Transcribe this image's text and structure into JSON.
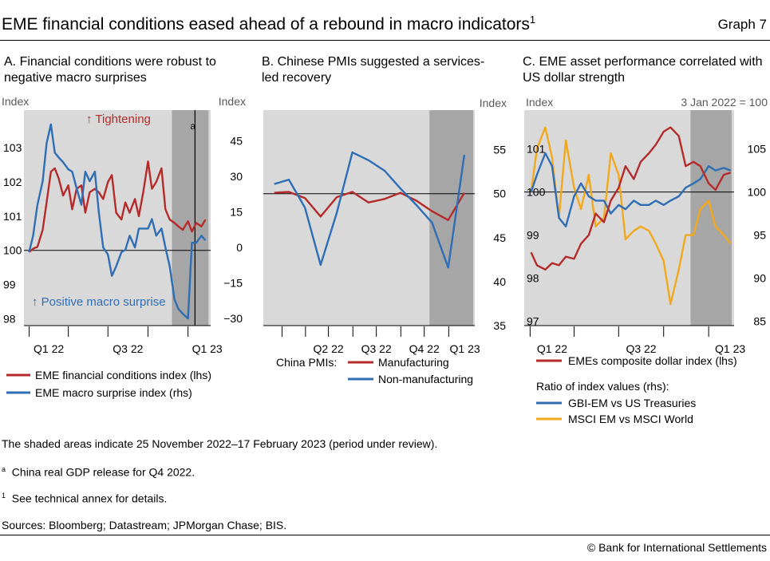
{
  "figure": {
    "title": "EME financial conditions eased ahead of a rebound in macro indicators",
    "title_sup": "1",
    "graph_number": "Graph 7"
  },
  "notes": {
    "shading": "The shaded areas indicate 25 November 2022–17 February 2023 (period under review).",
    "a_mark": "a",
    "a_text": "China real GDP release for Q4 2022.",
    "one_mark": "1",
    "one_text": "See technical annex for details.",
    "sources": "Sources: Bloomberg; Datastream; JPMorgan Chase; BIS.",
    "copyright": "© Bank for International Settlements"
  },
  "colors": {
    "red": "#b52b2b",
    "blue": "#2f6db5",
    "yellow": "#f2a81d",
    "panel_bg": "#d9d9d9",
    "shade": "#a6a6a6"
  },
  "chart_data": [
    {
      "id": "A",
      "type": "line",
      "title": "A. Financial conditions were robust to negative macro surprises",
      "ylabel_left": "Index",
      "ylabel_right": "Index",
      "x_ticks": [
        "Q1 22",
        "Q3 22",
        "Q1 23"
      ],
      "ylim_left": [
        97.8,
        104.1
      ],
      "ylim_right": [
        -33,
        58
      ],
      "yticks_left": [
        98,
        99,
        100,
        101,
        102,
        103
      ],
      "yticks_right": [
        -30,
        -15,
        0,
        15,
        30,
        45
      ],
      "annotations": {
        "top": "↑ Tightening",
        "bottom": "↑ Positive macro surprise",
        "vline": "a"
      },
      "shaded_period": [
        "2022-11-25",
        "2023-02-17"
      ],
      "series": [
        {
          "name": "EME financial conditions index (lhs)",
          "axis": "left",
          "color": "red",
          "x": [
            "2022-01-01",
            "2022-01-10",
            "2022-01-20",
            "2022-02-01",
            "2022-02-10",
            "2022-02-20",
            "2022-03-01",
            "2022-03-10",
            "2022-03-20",
            "2022-04-01",
            "2022-04-10",
            "2022-04-20",
            "2022-05-01",
            "2022-05-10",
            "2022-05-20",
            "2022-06-01",
            "2022-06-10",
            "2022-06-20",
            "2022-07-01",
            "2022-07-10",
            "2022-07-20",
            "2022-08-01",
            "2022-08-10",
            "2022-08-20",
            "2022-09-01",
            "2022-09-10",
            "2022-09-20",
            "2022-10-01",
            "2022-10-10",
            "2022-10-20",
            "2022-11-01",
            "2022-11-10",
            "2022-11-20",
            "2022-12-01",
            "2022-12-10",
            "2022-12-20",
            "2023-01-01",
            "2023-01-10",
            "2023-01-20",
            "2023-02-01",
            "2023-02-10"
          ],
          "y": [
            99.95,
            100.05,
            100.1,
            100.6,
            101.4,
            102.3,
            102.4,
            102.1,
            101.6,
            101.9,
            101.2,
            101.8,
            101.9,
            101.1,
            101.7,
            101.8,
            101.7,
            101.5,
            102.0,
            102.2,
            101.1,
            100.9,
            101.4,
            101.1,
            101.5,
            101.0,
            101.7,
            102.6,
            101.8,
            102.0,
            102.4,
            101.2,
            100.9,
            100.8,
            100.7,
            100.6,
            100.85,
            100.55,
            100.8,
            100.7,
            100.9
          ]
        },
        {
          "name": "EME macro surprise index (rhs)",
          "axis": "right",
          "color": "blue",
          "x": [
            "2022-01-01",
            "2022-01-10",
            "2022-01-20",
            "2022-02-01",
            "2022-02-10",
            "2022-02-20",
            "2022-03-01",
            "2022-03-10",
            "2022-03-20",
            "2022-04-01",
            "2022-04-10",
            "2022-04-20",
            "2022-05-01",
            "2022-05-10",
            "2022-05-20",
            "2022-06-01",
            "2022-06-10",
            "2022-06-20",
            "2022-07-01",
            "2022-07-10",
            "2022-07-20",
            "2022-08-01",
            "2022-08-10",
            "2022-08-20",
            "2022-09-01",
            "2022-09-10",
            "2022-09-20",
            "2022-10-01",
            "2022-10-10",
            "2022-10-20",
            "2022-11-01",
            "2022-11-10",
            "2022-11-20",
            "2022-12-01",
            "2022-12-10",
            "2022-12-20",
            "2023-01-01",
            "2023-01-10",
            "2023-01-20",
            "2023-02-01",
            "2023-02-10"
          ],
          "y": [
            -2,
            5,
            18,
            28,
            44,
            52,
            40,
            38,
            36,
            33,
            32,
            25,
            18,
            32,
            28,
            32,
            15,
            0,
            -3,
            -12,
            -8,
            -2,
            -1,
            5,
            0,
            8,
            8,
            8,
            12,
            5,
            8,
            0,
            -8,
            -22,
            -26,
            -28,
            -30,
            2,
            2,
            5,
            3
          ]
        }
      ]
    },
    {
      "id": "B",
      "type": "line",
      "title": "B. Chinese PMIs suggested a services-led recovery",
      "ylabel_right": "Index",
      "x_ticks": [
        "Q2 22",
        "Q3 22",
        "Q4 22",
        "Q1 23"
      ],
      "ylim_right": [
        35,
        59.5
      ],
      "yticks_right": [
        35,
        40,
        45,
        50,
        55
      ],
      "reference_line": 50,
      "shaded_period": [
        "2022-11-25",
        "2023-02-17"
      ],
      "legend_title": "China PMIs:",
      "series": [
        {
          "name": "Manufacturing",
          "axis": "right",
          "color": "red",
          "x": [
            "2022-01-31",
            "2022-02-28",
            "2022-03-31",
            "2022-04-30",
            "2022-05-31",
            "2022-06-30",
            "2022-07-31",
            "2022-08-31",
            "2022-09-30",
            "2022-10-31",
            "2022-11-30",
            "2022-12-31",
            "2023-01-31"
          ],
          "y": [
            50.1,
            50.2,
            49.5,
            47.4,
            49.6,
            50.2,
            49.0,
            49.4,
            50.1,
            49.2,
            48.0,
            47.0,
            50.1
          ]
        },
        {
          "name": "Non-manufacturing",
          "axis": "right",
          "color": "blue",
          "x": [
            "2022-01-31",
            "2022-02-28",
            "2022-03-31",
            "2022-04-30",
            "2022-05-31",
            "2022-06-30",
            "2022-07-31",
            "2022-08-31",
            "2022-09-30",
            "2022-10-31",
            "2022-11-30",
            "2022-12-31",
            "2023-01-31"
          ],
          "y": [
            51.1,
            51.6,
            48.4,
            41.9,
            47.8,
            54.7,
            53.8,
            52.6,
            50.6,
            48.7,
            46.7,
            41.6,
            54.4
          ]
        }
      ]
    },
    {
      "id": "C",
      "type": "line",
      "title": "C. EME asset performance correlated with US dollar strength",
      "ylabel_left": "Index",
      "ylabel_right": "3 Jan 2022 = 100",
      "x_ticks": [
        "Q1 22",
        "Q3 22",
        "Q1 23"
      ],
      "ylim_left": [
        96.9,
        101.9
      ],
      "ylim_right": [
        84.5,
        109.5
      ],
      "yticks_left": [
        97,
        98,
        99,
        100,
        101
      ],
      "yticks_right": [
        85,
        90,
        95,
        100,
        105
      ],
      "reference_line_right": 100,
      "shaded_period": [
        "2022-11-25",
        "2023-02-17"
      ],
      "legend_title": "Ratio of index values (rhs):",
      "series": [
        {
          "name": "EMEs composite dollar index (lhs)",
          "axis": "left",
          "color": "red",
          "x": [
            "2022-01-03",
            "2022-01-15",
            "2022-02-01",
            "2022-02-15",
            "2022-03-01",
            "2022-03-15",
            "2022-04-01",
            "2022-04-15",
            "2022-05-01",
            "2022-05-15",
            "2022-06-01",
            "2022-06-15",
            "2022-07-01",
            "2022-07-15",
            "2022-08-01",
            "2022-08-15",
            "2022-09-01",
            "2022-09-15",
            "2022-10-01",
            "2022-10-15",
            "2022-11-01",
            "2022-11-15",
            "2022-12-01",
            "2022-12-15",
            "2023-01-01",
            "2023-01-15",
            "2023-02-01",
            "2023-02-15"
          ],
          "y": [
            98.6,
            98.3,
            98.2,
            98.35,
            98.3,
            98.5,
            98.45,
            98.8,
            99.0,
            99.5,
            99.3,
            99.8,
            100.1,
            100.6,
            100.3,
            100.7,
            100.9,
            101.1,
            101.4,
            101.5,
            101.3,
            100.6,
            100.7,
            100.6,
            100.2,
            100.05,
            100.4,
            100.45
          ]
        },
        {
          "name": "GBI-EM vs US Treasuries",
          "axis": "right",
          "color": "blue",
          "x": [
            "2022-01-03",
            "2022-01-15",
            "2022-02-01",
            "2022-02-15",
            "2022-03-01",
            "2022-03-15",
            "2022-04-01",
            "2022-04-15",
            "2022-05-01",
            "2022-05-15",
            "2022-06-01",
            "2022-06-15",
            "2022-07-01",
            "2022-07-15",
            "2022-08-01",
            "2022-08-15",
            "2022-09-01",
            "2022-09-15",
            "2022-10-01",
            "2022-10-15",
            "2022-11-01",
            "2022-11-15",
            "2022-12-01",
            "2022-12-15",
            "2023-01-01",
            "2023-01-15",
            "2023-02-01",
            "2023-02-15"
          ],
          "y": [
            100,
            102,
            104.5,
            103,
            97,
            96,
            99.5,
            101,
            99.5,
            99,
            99,
            97.5,
            98.5,
            98,
            99,
            98.5,
            98.5,
            99,
            98.5,
            99,
            99.5,
            100.5,
            101,
            101.5,
            103,
            102.5,
            102.8,
            102.5
          ]
        },
        {
          "name": "MSCI EM vs MSCI World",
          "axis": "right",
          "color": "yellow",
          "x": [
            "2022-01-03",
            "2022-01-15",
            "2022-02-01",
            "2022-02-15",
            "2022-03-01",
            "2022-03-15",
            "2022-04-01",
            "2022-04-15",
            "2022-05-01",
            "2022-05-15",
            "2022-06-01",
            "2022-06-15",
            "2022-07-01",
            "2022-07-15",
            "2022-08-01",
            "2022-08-15",
            "2022-09-01",
            "2022-09-15",
            "2022-10-01",
            "2022-10-15",
            "2022-11-01",
            "2022-11-15",
            "2022-12-01",
            "2022-12-15",
            "2023-01-01",
            "2023-01-15",
            "2023-02-01",
            "2023-02-15"
          ],
          "y": [
            100,
            105,
            107.5,
            104,
            97,
            106,
            100.5,
            98,
            102,
            96,
            97,
            104.5,
            102,
            94.5,
            95.5,
            96,
            95.5,
            94,
            92,
            87,
            91,
            95,
            95,
            98,
            99,
            96,
            95,
            94
          ]
        }
      ]
    }
  ]
}
